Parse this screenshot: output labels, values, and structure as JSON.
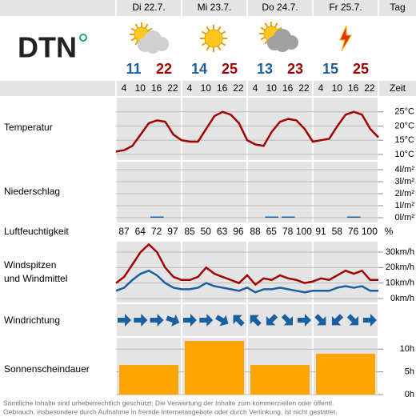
{
  "logo": "DTN",
  "header": {
    "day_label": "Tag",
    "time_label": "Zeit"
  },
  "days": [
    {
      "name": "Di 22.7.",
      "icon": "partly-cloudy",
      "min": 11,
      "max": 22
    },
    {
      "name": "Mi 23.7.",
      "icon": "sunny",
      "min": 14,
      "max": 25
    },
    {
      "name": "Do 24.7.",
      "icon": "cloudy-sun",
      "min": 13,
      "max": 23
    },
    {
      "name": "Fr 25.7.",
      "icon": "thunder",
      "min": 15,
      "max": 25
    }
  ],
  "hours": [
    4,
    10,
    16,
    22
  ],
  "temperature": {
    "label": "Temperatur",
    "color": "#a00000",
    "xlim": [
      0,
      96
    ],
    "x": [
      0,
      3,
      6,
      9,
      12,
      15,
      18,
      21,
      24,
      27,
      30,
      33,
      36,
      39,
      42,
      45,
      48,
      51,
      54,
      57,
      60,
      63,
      66,
      69,
      72,
      75,
      78,
      81,
      84,
      87,
      90,
      93,
      96
    ],
    "values": [
      11,
      11.5,
      13,
      17,
      21,
      22,
      21.5,
      17,
      15,
      14.5,
      14.5,
      19,
      23.5,
      25,
      24,
      21,
      15,
      13.5,
      13,
      18,
      21.5,
      22.5,
      22,
      19,
      14.5,
      15,
      15.5,
      20,
      24,
      25,
      24,
      19,
      16
    ],
    "ylim": [
      8,
      30
    ],
    "yticks": [
      {
        "value": 10,
        "label": "10°C"
      },
      {
        "value": 15,
        "label": "15°C"
      },
      {
        "value": 20,
        "label": "20°C"
      },
      {
        "value": 25,
        "label": "25°C"
      }
    ]
  },
  "precipitation": {
    "label": "Niederschlag",
    "color": "#1a5fa0",
    "xlim": [
      0,
      96
    ],
    "x": [
      0,
      6,
      12,
      18,
      24,
      30,
      36,
      42,
      48,
      54,
      60,
      66,
      72,
      78,
      84,
      90
    ],
    "values": [
      0,
      0,
      0.1,
      0,
      0,
      0,
      0,
      0,
      0,
      0.1,
      0.1,
      0,
      0,
      0,
      0.1,
      0
    ],
    "ylim": [
      -0.4,
      4.67
    ],
    "yticks": [
      {
        "value": 0,
        "label": "0l/m²"
      },
      {
        "value": 1,
        "label": "1l/m²"
      },
      {
        "value": 2,
        "label": "2l/m²"
      },
      {
        "value": 3,
        "label": "3l/m²"
      },
      {
        "value": 4,
        "label": "4l/m²"
      }
    ]
  },
  "humidity": {
    "label": "Luftfeuchtigkeit",
    "unit": "%",
    "values": [
      87,
      64,
      72,
      97,
      85,
      50,
      63,
      96,
      88,
      65,
      78,
      100,
      91,
      58,
      76,
      100
    ]
  },
  "wind": {
    "label": [
      "Windspitzen",
      "und Windmittel"
    ],
    "xlim": [
      0,
      96
    ],
    "x": [
      0,
      3,
      6,
      9,
      12,
      15,
      18,
      21,
      24,
      27,
      30,
      33,
      36,
      39,
      42,
      45,
      48,
      51,
      54,
      57,
      60,
      63,
      66,
      69,
      72,
      75,
      78,
      81,
      84,
      87,
      90,
      93,
      96
    ],
    "series": [
      {
        "name": "Windspitzen",
        "color": "#a00000",
        "values": [
          10,
          14,
          22,
          30,
          35,
          30,
          20,
          14,
          12,
          12,
          14,
          20,
          16,
          14,
          12,
          10,
          15,
          9,
          13,
          12,
          15,
          13,
          12,
          10,
          11,
          13,
          12,
          15,
          18,
          16,
          18,
          12,
          12
        ]
      },
      {
        "name": "Windmittel",
        "color": "#1a5fa0",
        "values": [
          5,
          7,
          12,
          16,
          18,
          15,
          10,
          7,
          6,
          6,
          7,
          10,
          8,
          7,
          6,
          5,
          7,
          4,
          6,
          6,
          7,
          6,
          5,
          4,
          5,
          5,
          5,
          7,
          8,
          7,
          8,
          5,
          5
        ]
      }
    ],
    "ylim": [
      -2.6,
      36.7
    ],
    "yticks": [
      {
        "value": 0,
        "label": "0km/h"
      },
      {
        "value": 10,
        "label": "10km/h"
      },
      {
        "value": 20,
        "label": "20km/h"
      },
      {
        "value": 30,
        "label": "30km/h"
      }
    ]
  },
  "wind_direction": {
    "label": "Windrichtung",
    "color": "#1a5fa0",
    "angles": [
      0,
      0,
      0,
      20,
      0,
      0,
      30,
      -135,
      -135,
      135,
      45,
      0,
      45,
      135,
      45,
      0
    ]
  },
  "sunshine": {
    "label": "Sonnenscheindauer",
    "color": "#ffa500",
    "values": [
      6.5,
      11.8,
      6.5,
      9
    ],
    "ylim": [
      0,
      12.5
    ],
    "yticks": [
      {
        "value": 0,
        "label": "0h"
      },
      {
        "value": 5,
        "label": "5h"
      },
      {
        "value": 10,
        "label": "10h"
      }
    ]
  },
  "footer": [
    "Sämtliche Inhalte sind urheberrechtlich geschützt. Die Verwertung der Inhalte zum kommerziellen oder öffentl.",
    "Gebrauch, insbesondere durch Aufnahme in fremde Internetangebote oder durch Verlinkung, ist nicht gestattet."
  ]
}
